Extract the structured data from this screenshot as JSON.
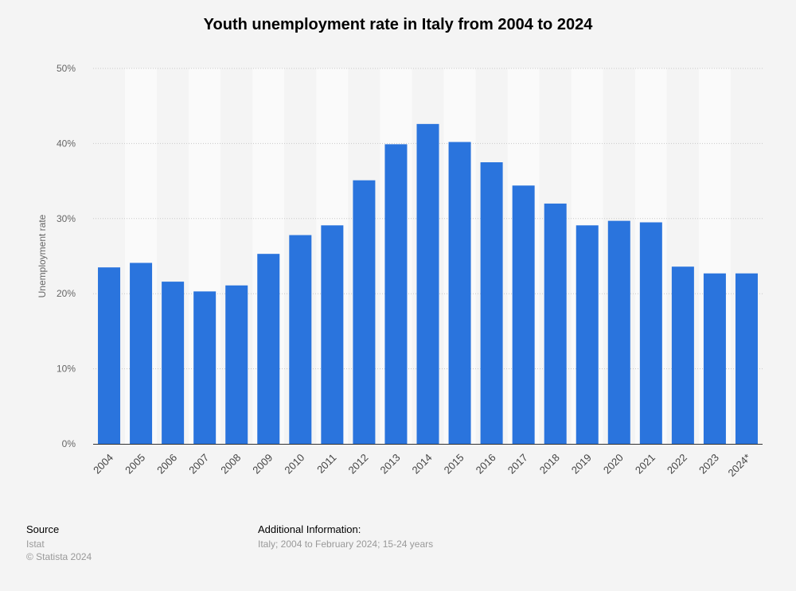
{
  "chart_data": {
    "type": "bar",
    "title": "Youth unemployment rate in Italy from 2004 to 2024",
    "ylabel": "Unemployment rate",
    "xlabel": "",
    "categories": [
      "2004",
      "2005",
      "2006",
      "2007",
      "2008",
      "2009",
      "2010",
      "2011",
      "2012",
      "2013",
      "2014",
      "2015",
      "2016",
      "2017",
      "2018",
      "2019",
      "2020",
      "2021",
      "2022",
      "2023",
      "2024*"
    ],
    "values": [
      23.5,
      24.1,
      21.6,
      20.3,
      21.1,
      25.3,
      27.8,
      29.1,
      35.1,
      39.9,
      42.6,
      40.2,
      37.5,
      34.4,
      32.0,
      29.1,
      29.7,
      29.5,
      23.6,
      22.7,
      22.7
    ],
    "yticks": [
      "0%",
      "10%",
      "20%",
      "30%",
      "40%",
      "50%"
    ],
    "ylim": [
      0,
      50
    ],
    "bar_color": "#2a74dd",
    "grid": true
  },
  "footer": {
    "source_heading": "Source",
    "source_lines": [
      "Istat",
      "© Statista 2024"
    ],
    "info_heading": "Additional Information:",
    "info_text": "Italy; 2004 to February 2024; 15-24 years"
  }
}
